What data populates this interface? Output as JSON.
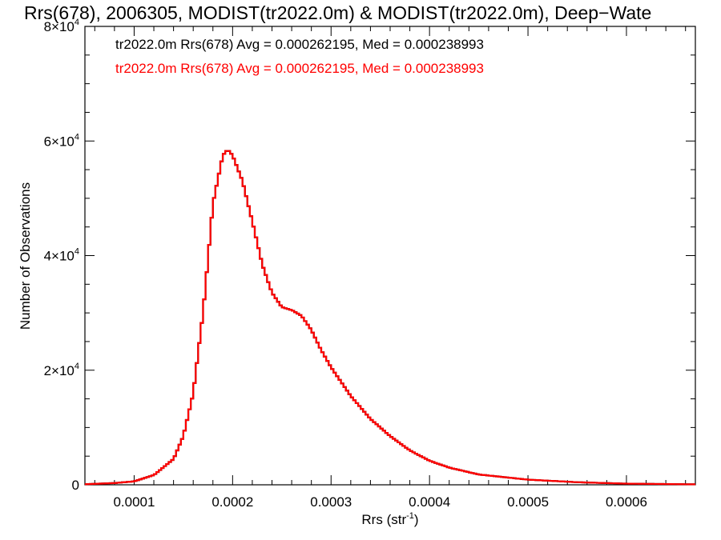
{
  "chart_data": {
    "type": "histogram",
    "title": "Rrs(678), 2006305, MODIST(tr2022.0m) & MODIST(tr2022.0m), Deep−Wate",
    "xlabel": "Rrs (str",
    "xlabel_sup": "-1",
    "xlabel_close": ")",
    "ylabel": "Number of Observations",
    "xlim": [
      5e-05,
      0.00067
    ],
    "ylim": [
      0,
      80000
    ],
    "x_ticks": [
      0.0001,
      0.0002,
      0.0003,
      0.0004,
      0.0005,
      0.0006
    ],
    "x_tick_labels": [
      "0.0001",
      "0.0002",
      "0.0003",
      "0.0004",
      "0.0005",
      "0.0006"
    ],
    "y_ticks": [
      {
        "value": 0,
        "label": "0",
        "sup": ""
      },
      {
        "value": 20000,
        "label": "2×10",
        "sup": "4"
      },
      {
        "value": 40000,
        "label": "4×10",
        "sup": "4"
      },
      {
        "value": 60000,
        "label": "6×10",
        "sup": "4"
      },
      {
        "value": 80000,
        "label": "8×10",
        "sup": "4"
      }
    ],
    "annotations": [
      {
        "text": "tr2022.0m Rrs(678) Avg = 0.000262195, Med = 0.000238993",
        "color": "#000000"
      },
      {
        "text": "tr2022.0m Rrs(678) Avg = 0.000262195, Med = 0.000238993",
        "color": "#ff0000"
      }
    ],
    "series": [
      {
        "color": "#000000",
        "style": "step"
      },
      {
        "color": "#ff0000",
        "style": "step"
      }
    ],
    "shape_points": {
      "x": [
        5e-05,
        8e-05,
        0.0001,
        0.00012,
        0.00014,
        0.00015,
        0.00016,
        0.00017,
        0.00018,
        0.00019,
        0.000195,
        0.0002,
        0.00021,
        0.00022,
        0.00023,
        0.00024,
        0.00025,
        0.00026,
        0.00027,
        0.00028,
        0.00029,
        0.0003,
        0.00032,
        0.00034,
        0.00036,
        0.00038,
        0.0004,
        0.00042,
        0.00045,
        0.0005,
        0.00055,
        0.0006,
        0.00067
      ],
      "y": [
        100,
        300,
        600,
        1700,
        4500,
        8500,
        16000,
        30000,
        49000,
        57500,
        58500,
        57500,
        53000,
        46000,
        38500,
        33500,
        31000,
        30500,
        29500,
        27000,
        23500,
        20500,
        15500,
        11500,
        8500,
        6000,
        4200,
        3000,
        1800,
        900,
        450,
        200,
        80
      ]
    },
    "bin_width": 2.5e-06,
    "grid": false,
    "legend": "none"
  }
}
